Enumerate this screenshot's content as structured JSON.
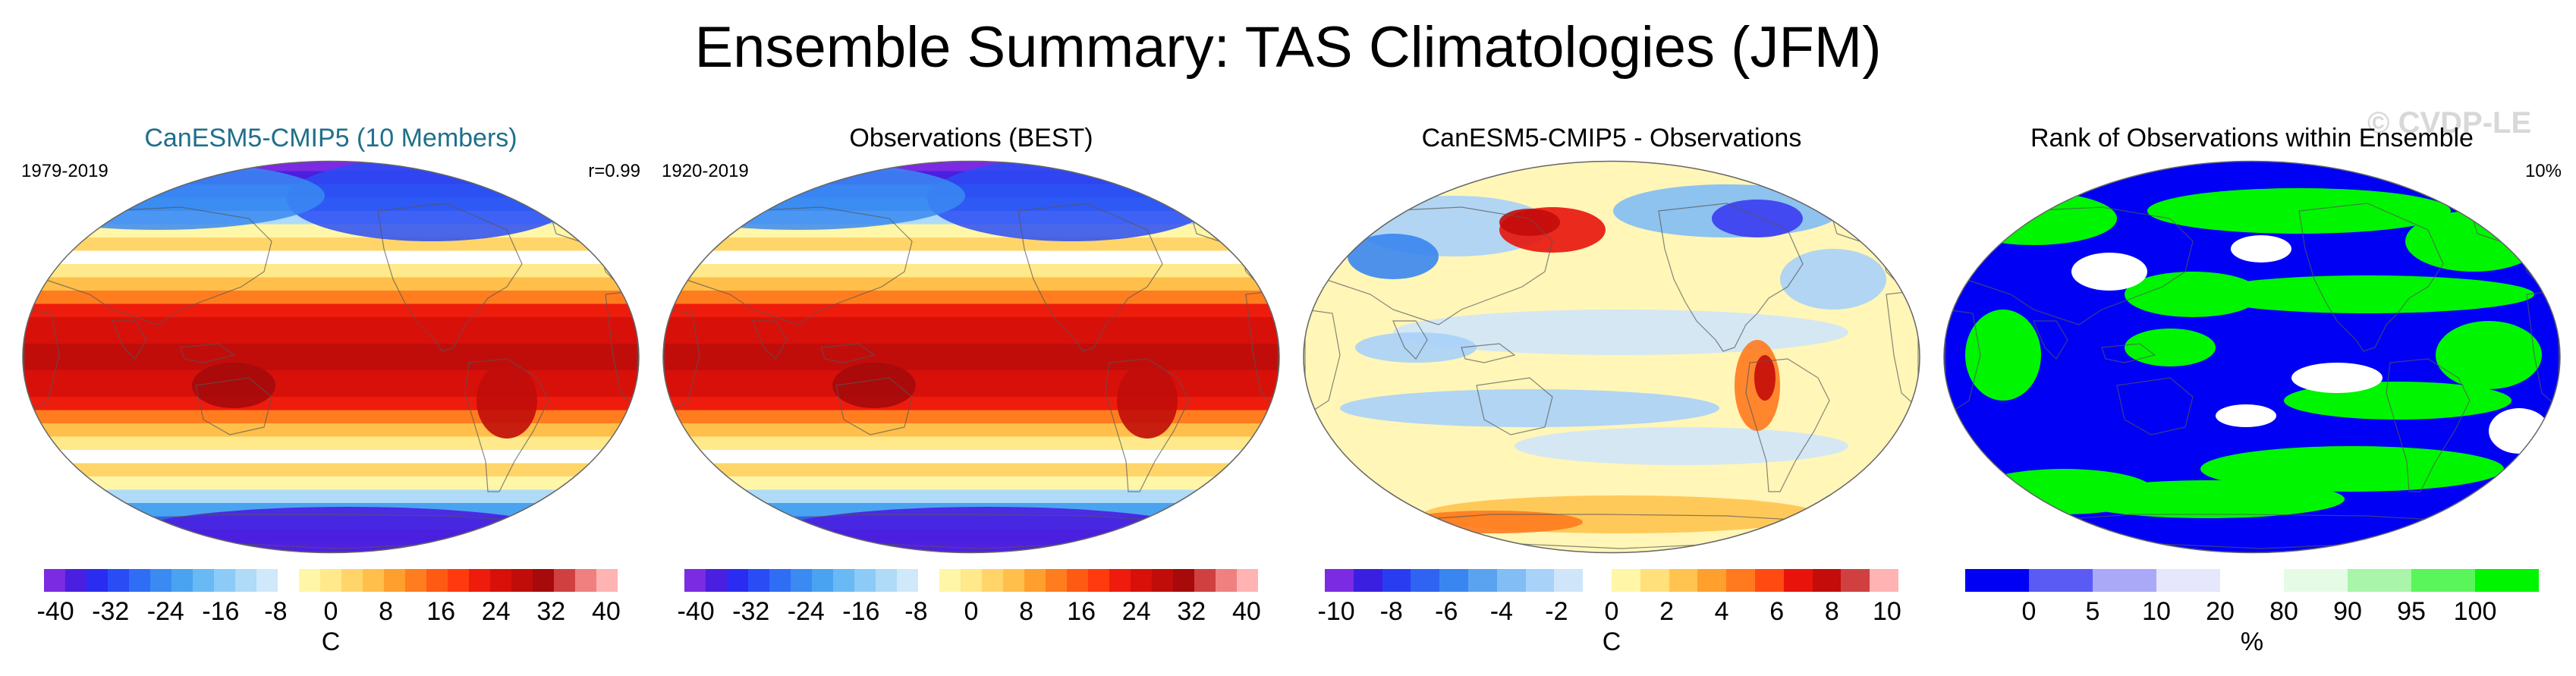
{
  "title": "Ensemble Summary: TAS Climatologies (JFM)",
  "watermark": "© CVDP-LE",
  "panels": [
    {
      "title": "CanESM5-CMIP5 (10 Members)",
      "left_label": "1979-2019",
      "right_label": "r=0.99",
      "field": "temperature",
      "colorbar": {
        "unit": "C",
        "ticks": [
          "-40",
          "-32",
          "-24",
          "-16",
          "-8",
          "0",
          "8",
          "16",
          "24",
          "32",
          "40"
        ],
        "colors": [
          "#7b2be2",
          "#4a1fe0",
          "#2a2cf2",
          "#2a4cf5",
          "#2f6df5",
          "#3a8af2",
          "#4aa3f0",
          "#69b9f5",
          "#8ccbf7",
          "#afdaf8",
          "#cfe8fa",
          "#ffffff",
          "#fff6a8",
          "#ffe98a",
          "#ffd56a",
          "#ffbf4a",
          "#ff9f2e",
          "#ff7d1e",
          "#ff5a14",
          "#ff3a0e",
          "#ee1c0c",
          "#d8100a",
          "#c00d0a",
          "#a60a0a",
          "#d04040",
          "#f08080",
          "#ffb3b3"
        ]
      }
    },
    {
      "title": "Observations (BEST)",
      "left_label": "1920-2019",
      "right_label": "",
      "field": "temperature",
      "colorbar": {
        "unit": "",
        "ticks": [
          "-40",
          "-32",
          "-24",
          "-16",
          "-8",
          "0",
          "8",
          "16",
          "24",
          "32",
          "40"
        ],
        "colors": [
          "#7b2be2",
          "#4a1fe0",
          "#2a2cf2",
          "#2a4cf5",
          "#2f6df5",
          "#3a8af2",
          "#4aa3f0",
          "#69b9f5",
          "#8ccbf7",
          "#afdaf8",
          "#cfe8fa",
          "#ffffff",
          "#fff6a8",
          "#ffe98a",
          "#ffd56a",
          "#ffbf4a",
          "#ff9f2e",
          "#ff7d1e",
          "#ff5a14",
          "#ff3a0e",
          "#ee1c0c",
          "#d8100a",
          "#c00d0a",
          "#a60a0a",
          "#d04040",
          "#f08080",
          "#ffb3b3"
        ]
      }
    },
    {
      "title": "CanESM5-CMIP5 - Observations",
      "left_label": "",
      "right_label": "",
      "field": "difference",
      "colorbar": {
        "unit": "C",
        "ticks": [
          "-10",
          "-8",
          "-6",
          "-4",
          "-2",
          "0",
          "2",
          "4",
          "6",
          "8",
          "10"
        ],
        "colors": [
          "#7b2be2",
          "#3b1fe0",
          "#2a3cf0",
          "#2f63f2",
          "#3a86f0",
          "#5aa3f0",
          "#82bdf5",
          "#a8d2f8",
          "#cfe5fa",
          "#ffffff",
          "#fff6a8",
          "#ffe07a",
          "#ffc450",
          "#ff9f2e",
          "#ff7a1e",
          "#ff4a12",
          "#e8140c",
          "#c40c0a",
          "#d04040",
          "#ffb3b3"
        ]
      }
    },
    {
      "title": "Rank of Observations within Ensemble",
      "left_label": "",
      "right_label": "10%",
      "field": "rank",
      "colorbar": {
        "unit": "%",
        "ticks": [
          "0",
          "5",
          "10",
          "20",
          "80",
          "90",
          "95",
          "100"
        ],
        "colors": [
          "#0000f5",
          "#5a5af5",
          "#a9a9f8",
          "#e6e6fc",
          "#ffffff",
          "#e6fbe6",
          "#a9f5a9",
          "#5af55a",
          "#00f500"
        ]
      }
    }
  ]
}
